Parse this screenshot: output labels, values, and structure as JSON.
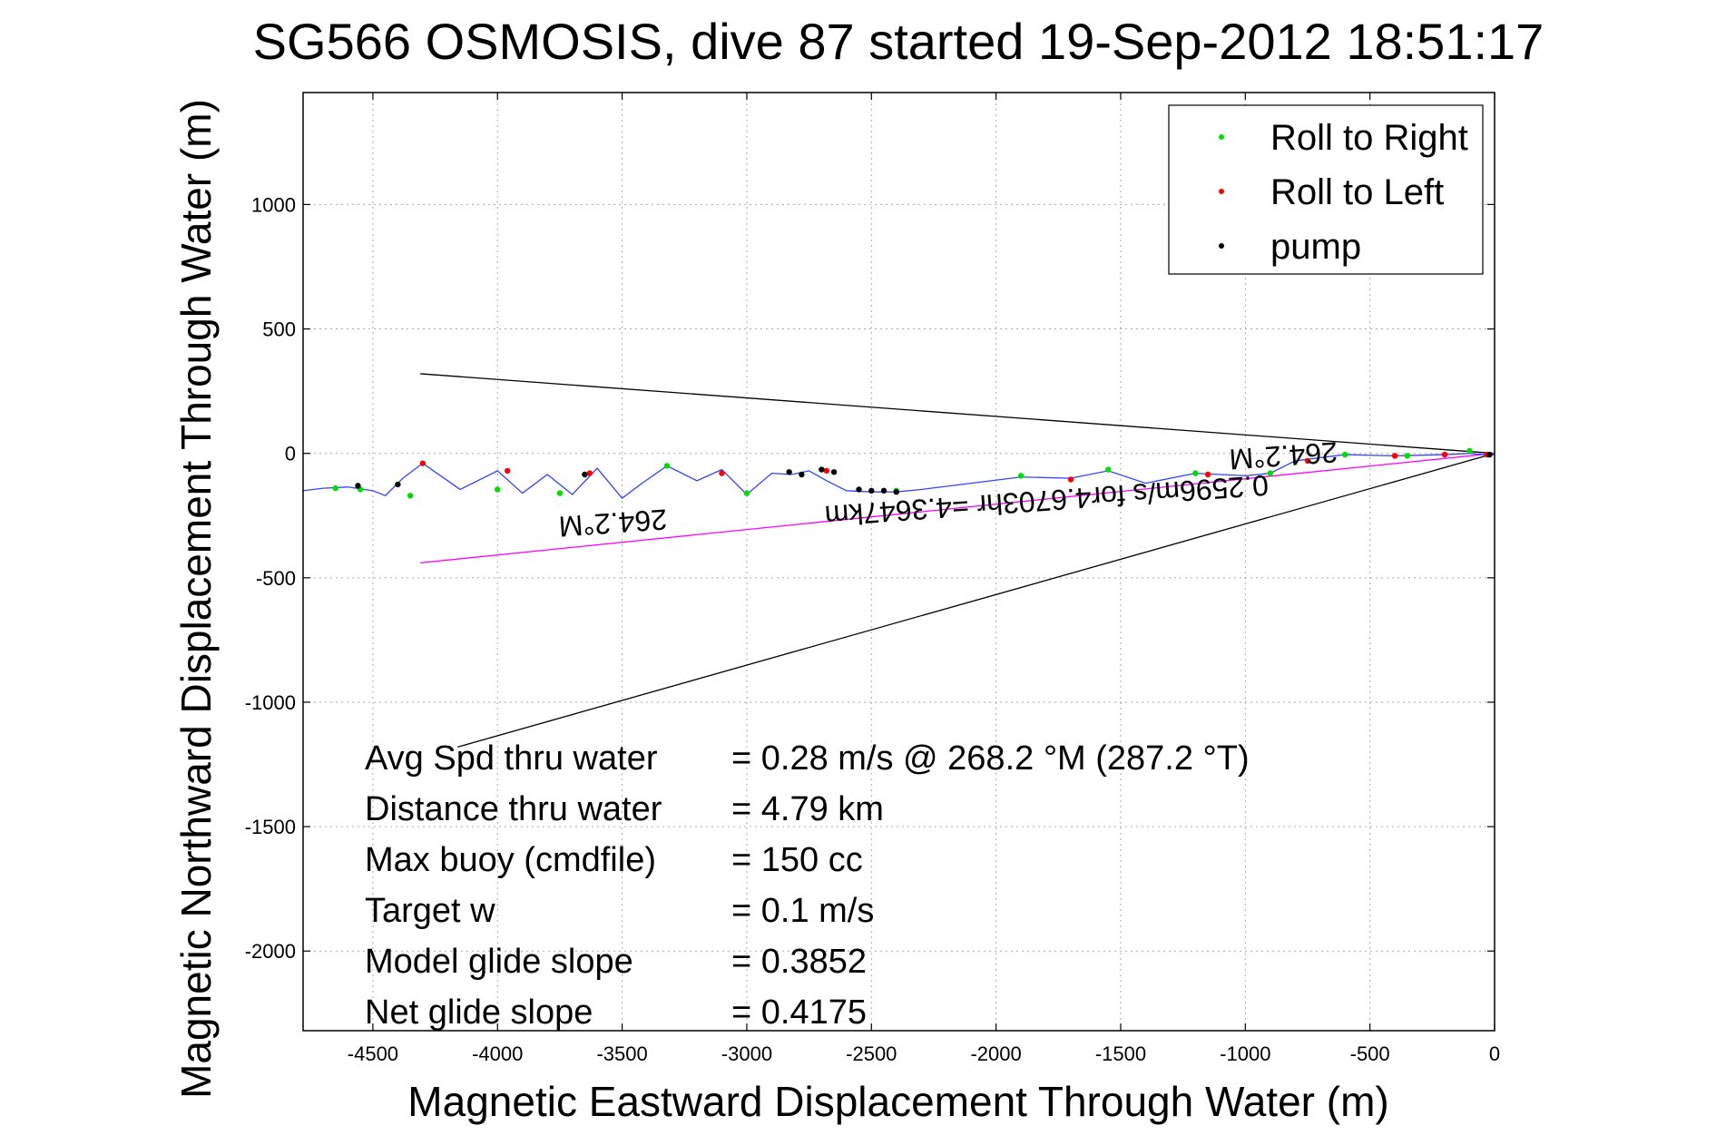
{
  "chart_data": {
    "type": "line",
    "title": "SG566 OSMOSIS, dive 87 started 19-Sep-2012 18:51:17",
    "xlabel": "Magnetic Eastward Displacement Through Water (m)",
    "ylabel": "Magnetic Northward Displacement Through Water (m)",
    "xlim": [
      -4780,
      0
    ],
    "ylim": [
      -2320,
      1450
    ],
    "xticks": [
      -4500,
      -4000,
      -3500,
      -3000,
      -2500,
      -2000,
      -1500,
      -1000,
      -500,
      0
    ],
    "yticks": [
      1000,
      500,
      0,
      -500,
      -1000,
      -1500,
      -2000
    ],
    "grid": true,
    "legend_position": "top-right",
    "legend": [
      {
        "label": "Roll to Right",
        "color": "#00dd00"
      },
      {
        "label": "Roll to Left",
        "color": "#ff0000"
      },
      {
        "label": "pump",
        "color": "#000000"
      }
    ],
    "series": [
      {
        "name": "track",
        "color": "#3344ff",
        "x": [
          -4780,
          -4700,
          -4600,
          -4500,
          -4450,
          -4380,
          -4300,
          -4150,
          -4000,
          -3900,
          -3800,
          -3700,
          -3600,
          -3500,
          -3420,
          -3320,
          -3200,
          -3100,
          -3000,
          -2900,
          -2820,
          -2750,
          -2680,
          -2600,
          -2500,
          -2400,
          -2300,
          -2100,
          -1900,
          -1700,
          -1550,
          -1400,
          -1200,
          -1000,
          -900,
          -800,
          -600,
          -400,
          -200,
          -100,
          -50,
          0
        ],
        "y": [
          -150,
          -140,
          -135,
          -150,
          -170,
          -100,
          -40,
          -145,
          -70,
          -160,
          -85,
          -165,
          -60,
          -180,
          -120,
          -50,
          -110,
          -65,
          -165,
          -80,
          -85,
          -70,
          -110,
          -150,
          -155,
          -155,
          -145,
          -120,
          -95,
          -100,
          -70,
          -120,
          -80,
          -90,
          -80,
          -30,
          -5,
          -10,
          -5,
          0,
          -5,
          -5
        ]
      },
      {
        "name": "Roll to Right",
        "color": "#00dd00",
        "x": [
          -4650,
          -4550,
          -4350,
          -4000,
          -3750,
          -3320,
          -3000,
          -2400,
          -1900,
          -1550,
          -1200,
          -900,
          -600,
          -350,
          -100
        ],
        "y": [
          -140,
          -145,
          -170,
          -145,
          -160,
          -50,
          -160,
          -150,
          -90,
          -65,
          -80,
          -80,
          -5,
          -10,
          10
        ]
      },
      {
        "name": "Roll to Left",
        "color": "#ff0000",
        "x": [
          -4300,
          -3960,
          -3630,
          -3100,
          -2680,
          -1700,
          -1150,
          -750,
          -400,
          -200,
          -30
        ],
        "y": [
          -40,
          -70,
          -80,
          -80,
          -70,
          -105,
          -85,
          -30,
          -10,
          -5,
          -5
        ]
      },
      {
        "name": "pump",
        "color": "#000000",
        "x": [
          -4560,
          -4400,
          -3650,
          -2830,
          -2780,
          -2700,
          -2650,
          -2550,
          -2500,
          -2450,
          -2400,
          -20
        ],
        "y": [
          -130,
          -125,
          -85,
          -75,
          -85,
          -65,
          -75,
          -145,
          -150,
          -150,
          -155,
          -5
        ]
      }
    ],
    "reference_lines": [
      {
        "color": "#000000",
        "x": [
          0,
          -4310
        ],
        "y": [
          0,
          320
        ]
      },
      {
        "color": "#000000",
        "x": [
          0,
          -4160
        ],
        "y": [
          0,
          -1180
        ]
      },
      {
        "color": "#ff00ff",
        "x": [
          0,
          -4310
        ],
        "y": [
          0,
          -440
        ]
      }
    ],
    "annotations": [
      {
        "text": "264.2°M",
        "x": -3540,
        "y": -240,
        "rotated": true
      },
      {
        "text": "264.2°M",
        "x": -850,
        "y": 30,
        "rotated": true
      },
      {
        "text": "0.2596m/s for4.6703hr =4.3647km",
        "x": -1800,
        "y": -150,
        "rotated": true
      }
    ],
    "stats": [
      {
        "label": "Avg Spd thru water",
        "value": "=  0.28 m/s @ 268.2 °M (287.2 °T)"
      },
      {
        "label": "Distance thru water",
        "value": "=  4.79 km"
      },
      {
        "label": "Max buoy (cmdfile)",
        "value": "= 150 cc"
      },
      {
        "label": "Target w",
        "value": "= 0.1 m/s"
      },
      {
        "label": "Model glide slope",
        "value": "= 0.3852"
      },
      {
        "label": "Net glide slope",
        "value": "= 0.4175"
      }
    ]
  }
}
